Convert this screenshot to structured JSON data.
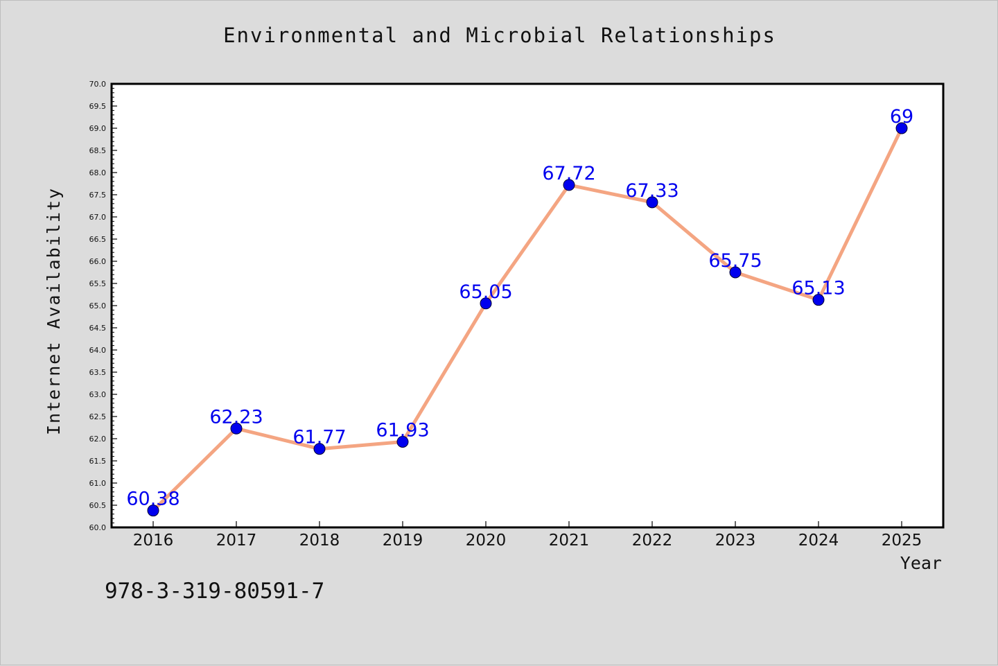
{
  "chart_data": {
    "type": "line",
    "title": "Environmental and Microbial Relationships",
    "xlabel": "Year",
    "ylabel": "Internet Availability",
    "categories": [
      "2016",
      "2017",
      "2018",
      "2019",
      "2020",
      "2021",
      "2022",
      "2023",
      "2024",
      "2025"
    ],
    "series": [
      {
        "values": [
          60.38,
          62.23,
          61.77,
          61.93,
          65.05,
          67.72,
          67.33,
          65.75,
          65.13,
          69
        ],
        "labels": [
          "60.38",
          "62.23",
          "61.77",
          "61.93",
          "65.05",
          "67.72",
          "67.33",
          "65.75",
          "65.13",
          "69"
        ]
      }
    ],
    "ylim": [
      60.0,
      70.0
    ],
    "yticks": [
      "60.0",
      "60.5",
      "61.0",
      "61.5",
      "62.0",
      "62.5",
      "63.0",
      "63.5",
      "64.0",
      "64.5",
      "65.0",
      "65.5",
      "66.0",
      "66.5",
      "67.0",
      "67.5",
      "68.0",
      "68.5",
      "69.0",
      "69.5",
      "70.0"
    ],
    "grid": false,
    "line_color": "#f4a582",
    "marker_color": "#0000ee",
    "label_color": "#0000ee"
  },
  "annotation": "978-3-319-80591-7"
}
